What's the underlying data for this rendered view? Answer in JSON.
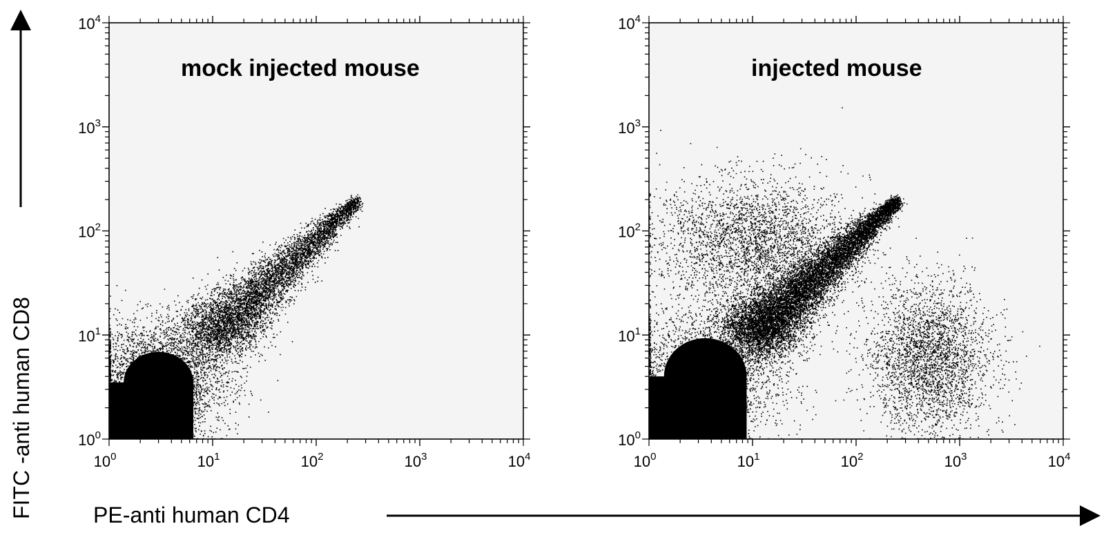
{
  "figure": {
    "xlabel": "PE-anti human CD4",
    "ylabel": "FITC -anti human CD8"
  },
  "chart_data": [
    {
      "type": "scatter",
      "title": "mock injected mouse",
      "xscale": "log",
      "yscale": "log",
      "xlim": [
        1,
        10000
      ],
      "ylim": [
        1,
        10000
      ],
      "xticks": [
        {
          "base": "10",
          "exp": "0"
        },
        {
          "base": "10",
          "exp": "1"
        },
        {
          "base": "10",
          "exp": "2"
        },
        {
          "base": "10",
          "exp": "3"
        },
        {
          "base": "10",
          "exp": "4"
        }
      ],
      "yticks": [
        {
          "base": "10",
          "exp": "0"
        },
        {
          "base": "10",
          "exp": "1"
        },
        {
          "base": "10",
          "exp": "2"
        },
        {
          "base": "10",
          "exp": "3"
        },
        {
          "base": "10",
          "exp": "4"
        }
      ],
      "grid": false,
      "point_color": "#000000",
      "populations": [
        {
          "name": "",
          "x_center": 3.0,
          "y_center": 3.5,
          "x_spread_decades": 0.32,
          "y_spread_decades": 0.28,
          "density": "very high"
        },
        {
          "name": "",
          "x_range": [
            10,
            250
          ],
          "y_range": [
            10,
            200
          ],
          "shape": "diagonal streak",
          "density": "high"
        }
      ]
    },
    {
      "type": "scatter",
      "title": "injected mouse",
      "xscale": "log",
      "yscale": "log",
      "xlim": [
        1,
        10000
      ],
      "ylim": [
        1,
        10000
      ],
      "xticks": [
        {
          "base": "10",
          "exp": "0"
        },
        {
          "base": "10",
          "exp": "1"
        },
        {
          "base": "10",
          "exp": "2"
        },
        {
          "base": "10",
          "exp": "3"
        },
        {
          "base": "10",
          "exp": "4"
        }
      ],
      "yticks": [
        {
          "base": "10",
          "exp": "0"
        },
        {
          "base": "10",
          "exp": "1"
        },
        {
          "base": "10",
          "exp": "2"
        },
        {
          "base": "10",
          "exp": "3"
        },
        {
          "base": "10",
          "exp": "4"
        }
      ],
      "grid": false,
      "point_color": "#000000",
      "populations": [
        {
          "name": "",
          "x_center": 3.5,
          "y_center": 4.0,
          "x_spread_decades": 0.38,
          "y_spread_decades": 0.35,
          "density": "very high"
        },
        {
          "name": "",
          "x_range": [
            10,
            250
          ],
          "y_range": [
            10,
            200
          ],
          "shape": "diagonal streak",
          "density": "very high"
        },
        {
          "name": "",
          "x_center": 10,
          "y_center": 80,
          "x_spread_decades": 0.45,
          "y_spread_decades": 0.3,
          "density": "high"
        },
        {
          "name": "",
          "x_center": 500,
          "y_center": 6,
          "x_spread_decades": 0.3,
          "y_spread_decades": 0.35,
          "density": "high"
        }
      ]
    }
  ]
}
